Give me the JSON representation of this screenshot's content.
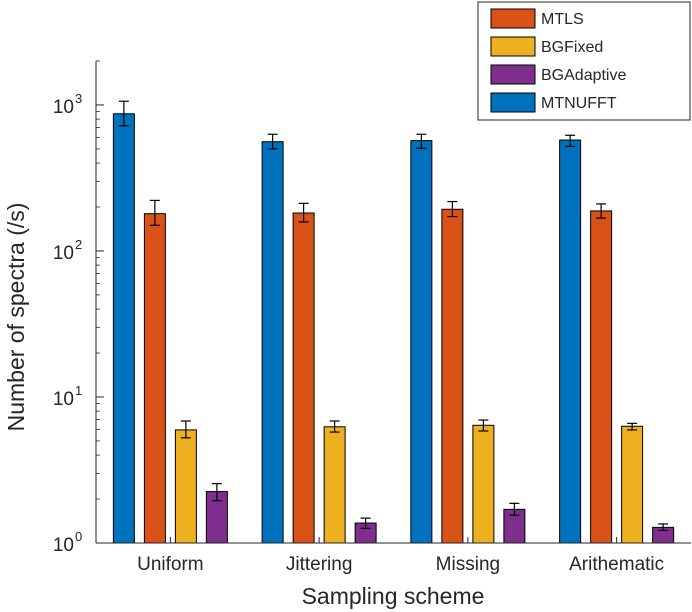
{
  "chart_data": {
    "type": "bar",
    "xlabel": "Sampling scheme",
    "ylabel": "Number of spectra (/s)",
    "yscale": "log",
    "ylim": [
      1,
      2000
    ],
    "yticks": [
      {
        "value": 1,
        "base": "10",
        "exp": "0"
      },
      {
        "value": 10,
        "base": "10",
        "exp": "1"
      },
      {
        "value": 100,
        "base": "10",
        "exp": "2"
      },
      {
        "value": 1000,
        "base": "10",
        "exp": "3"
      }
    ],
    "categories": [
      "Uniform",
      "Jittering",
      "Missing",
      "Arithematic"
    ],
    "series": [
      {
        "name": "MTNUFFT",
        "color": "#0072BD",
        "values": [
          870,
          560,
          570,
          575
        ],
        "err_low": [
          720,
          500,
          505,
          520
        ],
        "err_high": [
          1060,
          630,
          630,
          620
        ]
      },
      {
        "name": "MTLS",
        "color": "#D95319",
        "values": [
          180,
          182,
          193,
          188
        ],
        "err_low": [
          150,
          158,
          172,
          168
        ],
        "err_high": [
          222,
          212,
          218,
          210
        ]
      },
      {
        "name": "BGFixed",
        "color": "#EDB120",
        "values": [
          5.95,
          6.25,
          6.4,
          6.3
        ],
        "err_low": [
          5.25,
          5.75,
          5.85,
          5.95
        ],
        "err_high": [
          6.85,
          6.85,
          6.95,
          6.6
        ]
      },
      {
        "name": "BGAdaptive",
        "color": "#7E2F8E",
        "values": [
          2.25,
          1.37,
          1.7,
          1.28
        ],
        "err_low": [
          1.95,
          1.26,
          1.55,
          1.22
        ],
        "err_high": [
          2.55,
          1.48,
          1.87,
          1.35
        ]
      }
    ],
    "legend": {
      "placement": "top-right",
      "order": [
        "MTLS",
        "BGFixed",
        "BGAdaptive",
        "MTNUFFT"
      ]
    },
    "grid": false
  }
}
